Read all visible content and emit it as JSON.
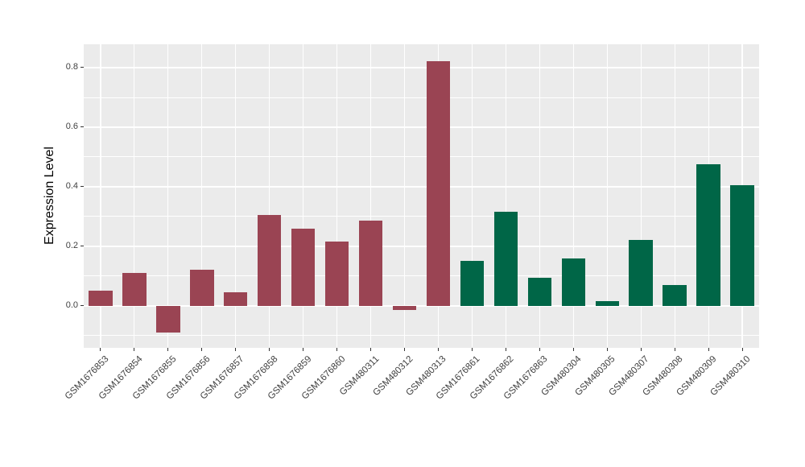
{
  "figure": {
    "background_color": "#FFFFFF",
    "panel_background_color": "#EBEBEB",
    "gridline_color": "#FFFFFF",
    "axis_text_color": "#404040",
    "tick_mark_color": "#333333"
  },
  "chart_data": {
    "type": "bar",
    "title": "",
    "xlabel": "",
    "ylabel": "Expression Level",
    "legend_position": "none",
    "grid": "on",
    "x_tick_rotation_degrees": 45,
    "categories": [
      "GSM1676853",
      "GSM1676854",
      "GSM1676855",
      "GSM1676856",
      "GSM1676857",
      "GSM1676858",
      "GSM1676859",
      "GSM1676860",
      "GSM480311",
      "GSM480312",
      "GSM480313",
      "GSM1676861",
      "GSM1676862",
      "GSM1676863",
      "GSM480304",
      "GSM480305",
      "GSM480307",
      "GSM480308",
      "GSM480309",
      "GSM480310"
    ],
    "values": [
      0.05,
      0.11,
      -0.09,
      0.12,
      0.045,
      0.305,
      0.26,
      0.215,
      0.285,
      -0.015,
      0.82,
      0.15,
      0.315,
      0.095,
      0.16,
      0.015,
      0.22,
      0.07,
      0.475,
      0.405
    ],
    "bar_groups": [
      "maroon",
      "maroon",
      "maroon",
      "maroon",
      "maroon",
      "maroon",
      "maroon",
      "maroon",
      "maroon",
      "maroon",
      "maroon",
      "green",
      "green",
      "green",
      "green",
      "green",
      "green",
      "green",
      "green",
      "green"
    ],
    "group_colors": {
      "maroon": "#9A4453",
      "green": "#006647"
    },
    "yticks": [
      {
        "value": 0.0,
        "label": "0.0"
      },
      {
        "value": 0.2,
        "label": "0.2"
      },
      {
        "value": 0.4,
        "label": "0.4"
      },
      {
        "value": 0.6,
        "label": "0.6"
      },
      {
        "value": 0.8,
        "label": "0.8"
      }
    ],
    "minor_gridlines": [
      -0.1,
      0.1,
      0.3,
      0.5,
      0.7
    ],
    "ylim": [
      -0.141,
      0.878
    ]
  }
}
